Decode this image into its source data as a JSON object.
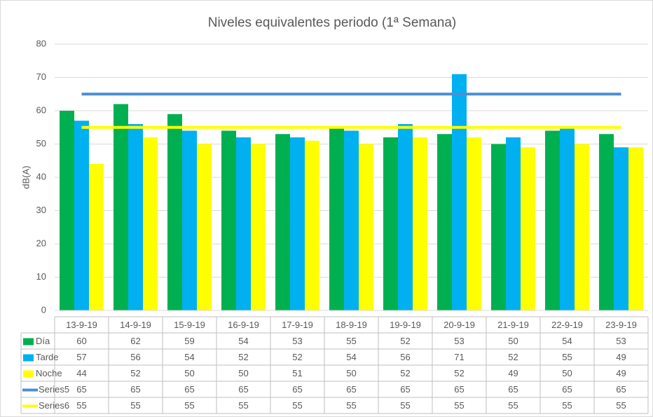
{
  "chart_data": {
    "type": "bar",
    "title": "Niveles equivalentes periodo (1ª Semana)",
    "y_label": "dB(A)",
    "categories": [
      "13-9-19",
      "14-9-19",
      "15-9-19",
      "16-9-19",
      "17-9-19",
      "18-9-19",
      "19-9-19",
      "20-9-19",
      "21-9-19",
      "22-9-19",
      "23-9-19"
    ],
    "series": [
      {
        "name": "Día",
        "color": "#00b050",
        "type": "bar",
        "values": [
          60,
          62,
          59,
          54,
          53,
          55,
          52,
          53,
          50,
          54,
          53
        ]
      },
      {
        "name": "Tarde",
        "color": "#00b0f0",
        "type": "bar",
        "values": [
          57,
          56,
          54,
          52,
          52,
          54,
          56,
          71,
          52,
          55,
          49
        ]
      },
      {
        "name": "Noche",
        "color": "#ffff00",
        "type": "bar",
        "values": [
          44,
          52,
          50,
          50,
          51,
          50,
          52,
          52,
          49,
          50,
          49
        ]
      },
      {
        "name": "Series5",
        "color": "#4a8fd4",
        "type": "line",
        "values": [
          65,
          65,
          65,
          65,
          65,
          65,
          65,
          65,
          65,
          65,
          65
        ]
      },
      {
        "name": "Series6",
        "color": "#ffff00",
        "type": "line",
        "values": [
          55,
          55,
          55,
          55,
          55,
          55,
          55,
          55,
          55,
          55,
          55
        ]
      }
    ],
    "ylim": [
      0,
      80
    ],
    "yticks": [
      0,
      10,
      20,
      30,
      40,
      50,
      60,
      70,
      80
    ],
    "grid": true
  }
}
